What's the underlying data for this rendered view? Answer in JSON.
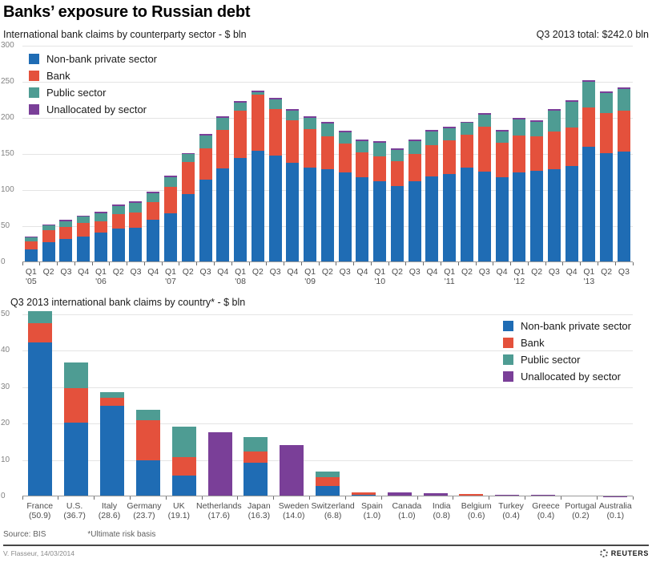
{
  "header": {
    "title": "Banks’ exposure to Russian debt",
    "total_label": "Q3 2013 total: $242.0 bln"
  },
  "legend": {
    "items": [
      {
        "label": "Non-bank private sector",
        "color": "#1f6cb4"
      },
      {
        "label": "Bank",
        "color": "#e4513c"
      },
      {
        "label": "Public sector",
        "color": "#4e9c93"
      },
      {
        "label": "Unallocated by sector",
        "color": "#7a3f98"
      }
    ]
  },
  "chart_data": [
    {
      "type": "bar",
      "stacked": true,
      "title": "International bank claims by counterparty sector - $ bln",
      "ylim": [
        0,
        300
      ],
      "yticks": [
        0,
        50,
        100,
        150,
        200,
        250,
        300
      ],
      "grid": true,
      "legend_position": "top-left",
      "categories": [
        "Q1",
        "Q2",
        "Q3",
        "Q4",
        "Q1",
        "Q2",
        "Q3",
        "Q4",
        "Q1",
        "Q2",
        "Q3",
        "Q4",
        "Q1",
        "Q2",
        "Q3",
        "Q4",
        "Q1",
        "Q2",
        "Q3",
        "Q4",
        "Q1",
        "Q2",
        "Q3",
        "Q4",
        "Q1",
        "Q2",
        "Q3",
        "Q4",
        "Q1",
        "Q2",
        "Q3",
        "Q4",
        "Q1",
        "Q2",
        "Q3"
      ],
      "sub_labels": [
        "'05",
        "",
        "",
        "",
        "'06",
        "",
        "",
        "",
        "'07",
        "",
        "",
        "",
        "'08",
        "",
        "",
        "",
        "'09",
        "",
        "",
        "",
        "'10",
        "",
        "",
        "",
        "'11",
        "",
        "",
        "",
        "'12",
        "",
        "",
        "",
        "'13",
        "",
        ""
      ],
      "series": [
        {
          "name": "Non-bank private sector",
          "color": "#1f6cb4",
          "values": [
            18,
            28,
            32,
            36,
            41,
            47,
            48,
            59,
            68,
            95,
            114,
            130,
            144,
            154,
            148,
            138,
            131,
            129,
            125,
            118,
            112,
            106,
            112,
            119,
            122,
            131,
            126,
            118,
            124,
            127,
            129,
            133,
            160,
            151,
            153
          ]
        },
        {
          "name": "Bank",
          "color": "#e4513c",
          "values": [
            11,
            16,
            17,
            18,
            16,
            20,
            21,
            24,
            36,
            44,
            44,
            53,
            66,
            78,
            64,
            59,
            54,
            46,
            39,
            34,
            35,
            34,
            38,
            43,
            47,
            46,
            62,
            48,
            52,
            48,
            52,
            54,
            55,
            56,
            57
          ]
        },
        {
          "name": "Public sector",
          "color": "#4e9c93",
          "values": [
            5,
            7,
            8,
            9,
            11,
            11,
            13,
            13,
            14,
            11,
            18,
            17,
            11,
            4,
            14,
            13,
            15,
            17,
            16,
            16,
            19,
            16,
            18,
            19,
            17,
            16,
            17,
            15,
            22,
            20,
            29,
            35,
            35,
            28,
            30
          ]
        },
        {
          "name": "Unallocated by sector",
          "color": "#7a3f98",
          "values": [
            1.5,
            1.5,
            1.5,
            2,
            1.5,
            2,
            2,
            2,
            1.5,
            1.5,
            2,
            2,
            2,
            2,
            2,
            2,
            2,
            2,
            2,
            2,
            2,
            2,
            2,
            2,
            2,
            2,
            2,
            2,
            2,
            2,
            2,
            2,
            2,
            2,
            2
          ]
        }
      ]
    },
    {
      "type": "bar",
      "stacked": true,
      "title": "Q3 2013 international bank claims by country* - $ bln",
      "ylim": [
        0,
        50
      ],
      "yticks": [
        0,
        10,
        20,
        30,
        40,
        50
      ],
      "grid": true,
      "legend_position": "top-right",
      "categories": [
        "France",
        "U.S.",
        "Italy",
        "Germany",
        "UK",
        "Netherlands",
        "Japan",
        "Sweden",
        "Switzerland",
        "Spain",
        "Canada",
        "India",
        "Belgium",
        "Turkey",
        "Greece",
        "Portugal",
        "Australia"
      ],
      "sub_labels": [
        "(50.9)",
        "(36.7)",
        "(28.6)",
        "(23.7)",
        "(19.1)",
        "(17.6)",
        "(16.3)",
        "(14.0)",
        "(6.8)",
        "(1.0)",
        "(1.0)",
        "(0.8)",
        "(0.6)",
        "(0.4)",
        "(0.4)",
        "(0.2)",
        "(0.1)"
      ],
      "totals": [
        50.9,
        36.7,
        28.6,
        23.7,
        19.1,
        17.6,
        16.3,
        14.0,
        6.8,
        1.0,
        1.0,
        0.8,
        0.6,
        0.4,
        0.4,
        0.2,
        0.1
      ],
      "series": [
        {
          "name": "Non-bank private sector",
          "color": "#1f6cb4",
          "values": [
            42.4,
            20.2,
            25.0,
            10.0,
            5.8,
            0,
            9.3,
            0,
            2.9,
            0.5,
            0,
            0,
            0,
            0,
            0,
            0,
            0
          ]
        },
        {
          "name": "Bank",
          "color": "#e4513c",
          "values": [
            5.1,
            9.5,
            2.2,
            11.0,
            5.0,
            0,
            3.0,
            0,
            2.3,
            0.5,
            0,
            0,
            0.6,
            0,
            0,
            0,
            0
          ]
        },
        {
          "name": "Public sector",
          "color": "#4e9c93",
          "values": [
            3.4,
            7.0,
            1.4,
            2.7,
            8.3,
            0,
            4.0,
            0,
            1.6,
            0,
            0,
            0,
            0,
            0,
            0,
            0,
            0
          ]
        },
        {
          "name": "Unallocated by sector",
          "color": "#7a3f98",
          "values": [
            0,
            0,
            0,
            0,
            0,
            17.6,
            0,
            14.0,
            0,
            0,
            1.0,
            0.8,
            0,
            0.4,
            0.4,
            0.2,
            0.1
          ]
        }
      ]
    }
  ],
  "footer": {
    "source": "Source: BIS",
    "note": "*Ultimate risk basis",
    "credit": "V. Flasseur, 14/03/2014",
    "brand": "REUTERS"
  }
}
